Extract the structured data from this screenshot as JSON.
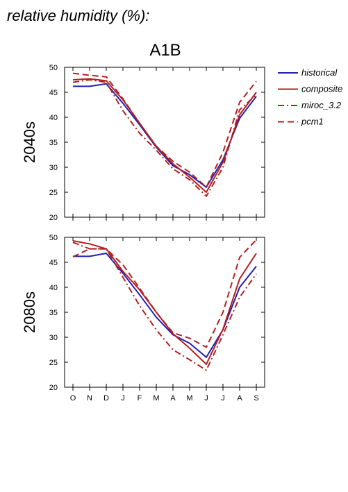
{
  "header": {
    "title": "relative humidity (%):"
  },
  "figure": {
    "scenario": "A1B"
  },
  "legend": [
    {
      "name": "historical",
      "color": "#1f1fb4",
      "dash": "solid"
    },
    {
      "name": "composite",
      "color": "#b41f1f",
      "dash": "solid"
    },
    {
      "name": "miroc_3.2",
      "color": "#b41f1f",
      "dash": "dashdot"
    },
    {
      "name": "pcm1",
      "color": "#b41f1f",
      "dash": "dashed"
    }
  ],
  "chart_data": [
    {
      "type": "line",
      "panel_label": "2040s",
      "categories": [
        "O",
        "N",
        "D",
        "J",
        "F",
        "M",
        "A",
        "M",
        "J",
        "J",
        "A",
        "S"
      ],
      "ylim": [
        20,
        50
      ],
      "yticks": [
        20,
        25,
        30,
        35,
        40,
        45,
        50
      ],
      "series": [
        {
          "name": "historical",
          "values": [
            46.2,
            46.2,
            46.7,
            42.8,
            38.5,
            34.0,
            30.3,
            28.5,
            26.0,
            31.5,
            39.8,
            44.2
          ]
        },
        {
          "name": "composite",
          "values": [
            47.5,
            47.7,
            47.3,
            43.5,
            38.8,
            34.2,
            30.7,
            28.0,
            25.0,
            31.0,
            40.5,
            45.0
          ]
        },
        {
          "name": "miroc_3.2",
          "values": [
            47.0,
            47.5,
            47.0,
            41.3,
            36.8,
            33.4,
            29.7,
            27.5,
            24.2,
            30.0,
            41.5,
            44.5
          ]
        },
        {
          "name": "pcm1",
          "values": [
            48.8,
            48.4,
            48.1,
            43.7,
            38.8,
            34.2,
            31.2,
            29.0,
            26.0,
            33.0,
            43.0,
            47.2
          ]
        }
      ]
    },
    {
      "type": "line",
      "panel_label": "2080s",
      "categories": [
        "O",
        "N",
        "D",
        "J",
        "F",
        "M",
        "A",
        "M",
        "J",
        "J",
        "A",
        "S"
      ],
      "ylim": [
        20,
        50
      ],
      "yticks": [
        20,
        25,
        30,
        35,
        40,
        45,
        50
      ],
      "series": [
        {
          "name": "historical",
          "values": [
            46.2,
            46.2,
            46.8,
            42.8,
            38.5,
            34.0,
            30.5,
            28.8,
            26.0,
            31.5,
            40.0,
            44.2
          ]
        },
        {
          "name": "composite",
          "values": [
            49.3,
            48.7,
            47.7,
            43.2,
            39.5,
            35.0,
            30.7,
            27.8,
            24.6,
            31.6,
            41.7,
            46.8
          ]
        },
        {
          "name": "miroc_3.2",
          "values": [
            49.0,
            47.7,
            47.7,
            42.0,
            36.3,
            31.5,
            27.5,
            25.5,
            23.4,
            30.5,
            38.0,
            42.7
          ]
        },
        {
          "name": "pcm1",
          "values": [
            46.1,
            47.7,
            47.7,
            44.5,
            39.8,
            35.0,
            30.9,
            29.8,
            28.0,
            35.0,
            46.0,
            49.5
          ]
        }
      ]
    }
  ]
}
